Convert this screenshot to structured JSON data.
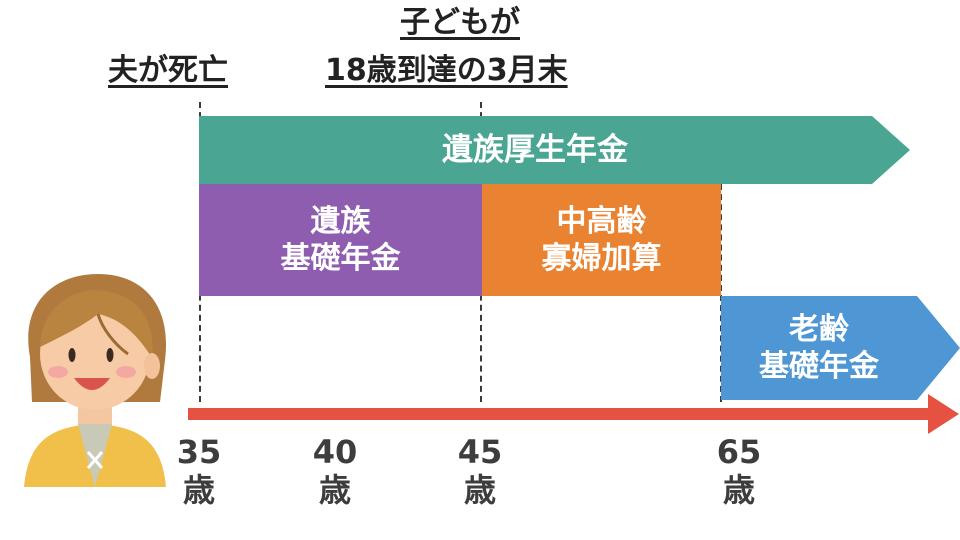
{
  "events": {
    "husband_death": "夫が死亡",
    "child_line1": "子どもが",
    "child_line2": "18歳到達の3月末"
  },
  "bars": {
    "survivor_employee_pension": "遺族厚生年金",
    "survivor_basic_line1": "遺族",
    "survivor_basic_line2": "基礎年金",
    "widow_addition_line1": "中高齢",
    "widow_addition_line2": "寡婦加算",
    "old_age_line1": "老齢",
    "old_age_line2": "基礎年金"
  },
  "ages": [
    {
      "num": "35",
      "unit": "歳"
    },
    {
      "num": "40",
      "unit": "歳"
    },
    {
      "num": "45",
      "unit": "歳"
    },
    {
      "num": "65",
      "unit": "歳"
    }
  ],
  "colors": {
    "teal": "#4aa592",
    "purple": "#8e5db0",
    "orange": "#e98331",
    "blue": "#4e97d4",
    "timeline": "#e65242"
  }
}
